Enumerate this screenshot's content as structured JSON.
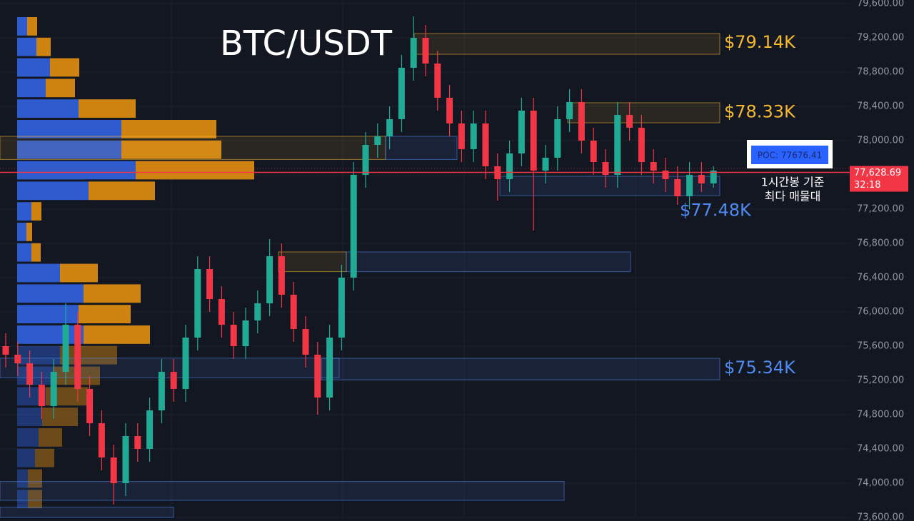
{
  "chart_data": {
    "type": "candlestick",
    "title": "BTC/USDT",
    "ylim": [
      73600,
      79600
    ],
    "yticks": [
      {
        "value": 73600,
        "label": "73,600.00"
      },
      {
        "value": 74000,
        "label": "74,000.00"
      },
      {
        "value": 74400,
        "label": "74,400.00"
      },
      {
        "value": 74800,
        "label": "74,800.00"
      },
      {
        "value": 75200,
        "label": "75,200.00"
      },
      {
        "value": 75600,
        "label": "75,600.00"
      },
      {
        "value": 76000,
        "label": "76,000.00"
      },
      {
        "value": 76400,
        "label": "76,400.00"
      },
      {
        "value": 76800,
        "label": "76,800.00"
      },
      {
        "value": 77200,
        "label": "77,200.00"
      },
      {
        "value": 77600,
        "label": "77,600.00"
      },
      {
        "value": 78000,
        "label": "78,000.00"
      },
      {
        "value": 78400,
        "label": "78,400.00"
      },
      {
        "value": 78800,
        "label": "78,800.00"
      },
      {
        "value": 79200,
        "label": "79,200.00"
      },
      {
        "value": 79600,
        "label": "79,600.00"
      }
    ],
    "grid": true,
    "up_color": "#22ab94",
    "down_color": "#f23645",
    "open": [
      75600,
      75500,
      75400,
      75150,
      74900,
      75300,
      75850,
      75100,
      74700,
      74300,
      74000,
      74550,
      74400,
      74850,
      75300,
      75100,
      75700,
      76500,
      76150,
      75850,
      75600,
      75900,
      76100,
      76650,
      76200,
      75800,
      75500,
      75000,
      75700,
      76400,
      77600,
      77950,
      78050,
      78250,
      78850,
      79200,
      78900,
      78500,
      78200,
      77900,
      78200,
      77700,
      77550,
      77850,
      78350,
      77650,
      77800,
      78250,
      78450,
      78000,
      77750,
      77600,
      78300,
      78150,
      77750,
      77650,
      77550,
      77350,
      77600,
      77500
    ],
    "high": [
      75750,
      75650,
      75550,
      75300,
      75450,
      76100,
      76000,
      75250,
      74850,
      74450,
      74700,
      74700,
      75000,
      75450,
      75450,
      75850,
      76650,
      76650,
      76300,
      76000,
      76050,
      76250,
      76850,
      76800,
      76350,
      75950,
      75650,
      75850,
      76550,
      77750,
      78100,
      78200,
      78400,
      79000,
      79450,
      79350,
      79050,
      78650,
      78350,
      78350,
      78350,
      77850,
      78000,
      78500,
      78500,
      77950,
      78400,
      78600,
      78600,
      78150,
      77900,
      78450,
      78450,
      78300,
      77900,
      77800,
      77700,
      77750,
      77750,
      77700
    ],
    "low": [
      75350,
      75250,
      75000,
      74750,
      74750,
      75150,
      74950,
      74550,
      74150,
      73750,
      73850,
      74250,
      74250,
      74700,
      74950,
      74950,
      75550,
      76000,
      75700,
      75450,
      75450,
      75750,
      75950,
      76050,
      75650,
      75350,
      74800,
      74850,
      75550,
      76250,
      77450,
      77800,
      77900,
      78100,
      78700,
      78750,
      78350,
      78050,
      77750,
      77750,
      77550,
      77300,
      77400,
      77700,
      76950,
      77500,
      77650,
      78100,
      77850,
      77600,
      77450,
      77450,
      78000,
      77600,
      77500,
      77400,
      77250,
      77200,
      77400,
      77450
    ],
    "close": [
      75500,
      75400,
      75150,
      74900,
      75300,
      75850,
      75100,
      74700,
      74300,
      74000,
      74550,
      74400,
      74850,
      75300,
      75100,
      75700,
      76500,
      76150,
      75850,
      75600,
      75900,
      76100,
      76650,
      76200,
      75800,
      75500,
      75000,
      75700,
      76400,
      77600,
      77950,
      78050,
      78250,
      78850,
      79200,
      78900,
      78500,
      78200,
      77900,
      78200,
      77700,
      77550,
      77850,
      78350,
      77650,
      77800,
      78250,
      78450,
      78000,
      77750,
      77600,
      78300,
      78150,
      77750,
      77650,
      77550,
      77350,
      77600,
      77500,
      77650
    ],
    "volume_profile": {
      "price_bins": [
        79450,
        79210,
        78970,
        78730,
        78490,
        78250,
        78010,
        77770,
        77530,
        77290,
        77050,
        76810,
        76570,
        76330,
        76090,
        75850,
        75610,
        75370,
        75130,
        74890,
        74650,
        74410,
        74170,
        73930,
        73690
      ],
      "series": [
        {
          "color": "#2f5fd8",
          "values": [
            14,
            27,
            46,
            40,
            86,
            146,
            146,
            166,
            100,
            20,
            13,
            20,
            60,
            93,
            86,
            93,
            60,
            50,
            40,
            35,
            30,
            25,
            15,
            15
          ]
        },
        {
          "color": "#d98a12",
          "values": [
            14,
            20,
            41,
            41,
            80,
            133,
            140,
            166,
            93,
            14,
            8,
            13,
            53,
            80,
            73,
            93,
            80,
            66,
            60,
            50,
            33,
            27,
            20,
            20
          ]
        }
      ]
    },
    "zones": [
      {
        "low": 79008,
        "high": 79250,
        "value": 79140,
        "label": "$79.14K",
        "color": "#f5b82e"
      },
      {
        "low": 78208,
        "high": 78442,
        "value": 78330,
        "label": "$78.33K",
        "color": "#f5b82e"
      },
      {
        "low": 75208,
        "high": 75458,
        "value": 75340,
        "label": "$75.34K",
        "color": "#4f8bf0"
      },
      {
        "low": 77358,
        "high": 77583,
        "value": 77480,
        "label": "$77.48K",
        "color": "#4f8bf0",
        "label_position": "below"
      },
      {
        "low": 77780,
        "high": 78050,
        "color": "#f5b82e"
      },
      {
        "low": 77780,
        "high": 78050,
        "color": "#4f8bf0"
      },
      {
        "low": 76470,
        "high": 76700,
        "color": "#f5b82e"
      },
      {
        "low": 76470,
        "high": 76700,
        "color": "#4f8bf0"
      },
      {
        "low": 75230,
        "high": 75460,
        "color": "#4f8bf0"
      },
      {
        "low": 73800,
        "high": 74020,
        "color": "#4f8bf0"
      },
      {
        "low": 73600,
        "high": 73720,
        "color": "#4f8bf0"
      }
    ],
    "current_price": {
      "value": 77628.69,
      "label": "77,628.69",
      "countdown": "32:18",
      "color": "#f23645"
    },
    "poc": {
      "value": 77676.41,
      "label": "POC: 77676.41"
    },
    "note": [
      "1시간봉 기준",
      "최다 매물대"
    ]
  }
}
